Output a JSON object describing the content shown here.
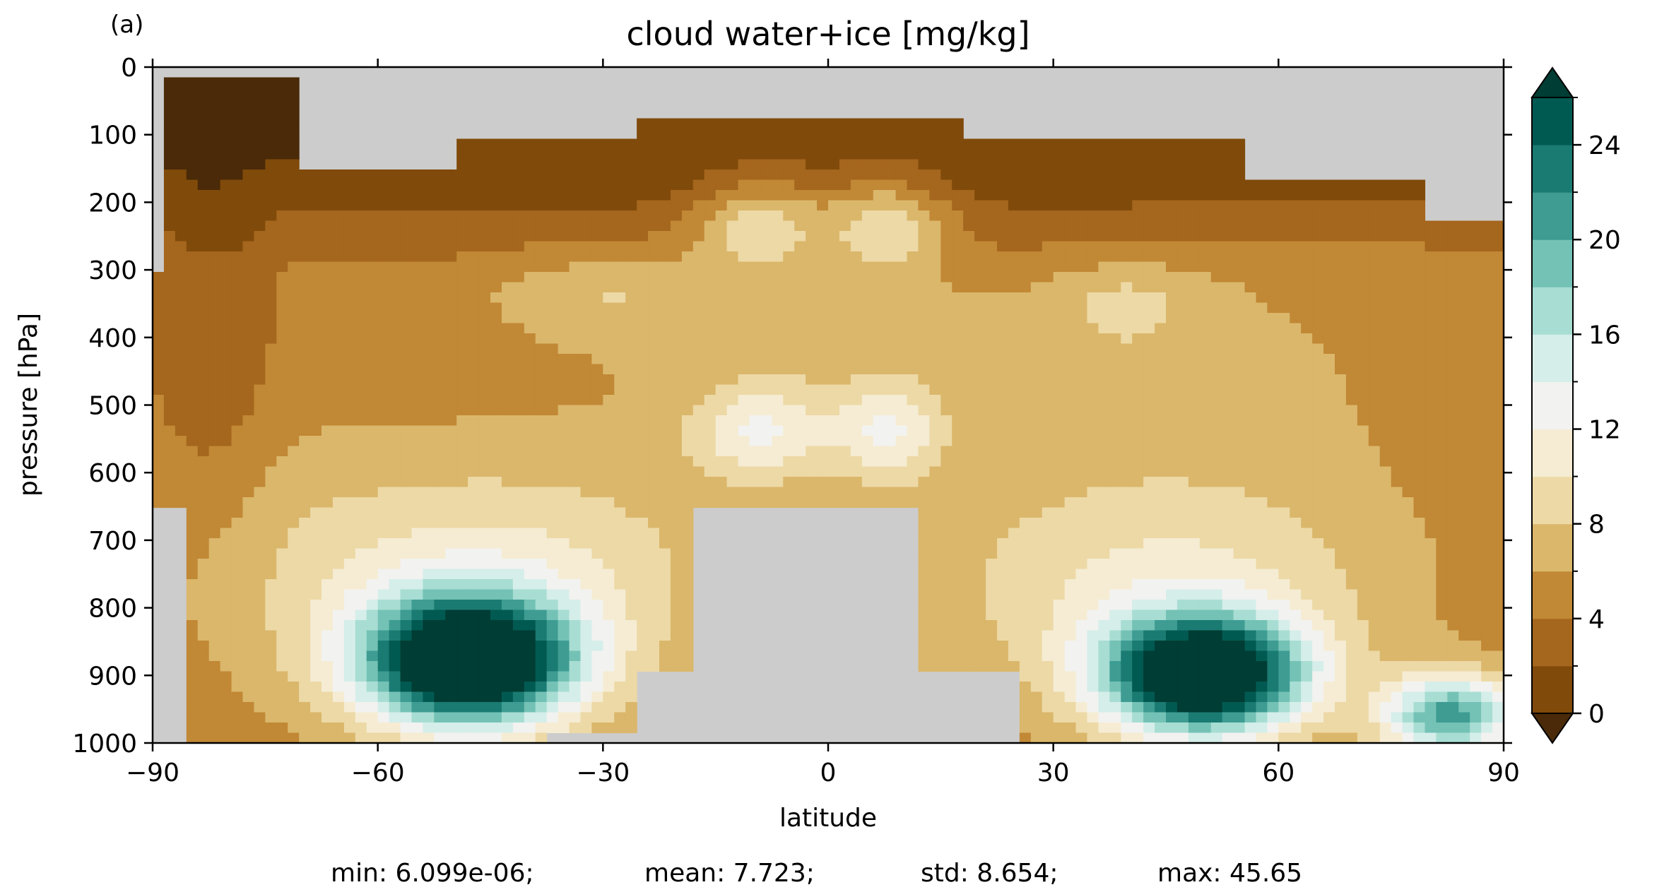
{
  "panel_label": "(a)",
  "chart_data": {
    "type": "heatmap",
    "subtype": "filled contour (latitude-pressure cross section)",
    "title": "cloud water+ice [mg/kg]",
    "xlabel": "latitude",
    "ylabel": "pressure [hPa]",
    "xlim": [
      -90,
      90
    ],
    "ylim": [
      1000,
      0
    ],
    "x_ticks": [
      -90,
      -60,
      -30,
      0,
      30,
      60,
      90
    ],
    "x_tick_labels": [
      "−90",
      "−60",
      "−30",
      "0",
      "30",
      "60",
      "90"
    ],
    "y_ticks": [
      0,
      100,
      200,
      300,
      400,
      500,
      600,
      700,
      800,
      900,
      1000
    ],
    "y_tick_labels": [
      "0",
      "100",
      "200",
      "300",
      "400",
      "500",
      "600",
      "700",
      "800",
      "900",
      "1000"
    ],
    "colorbar": {
      "levels": [
        0,
        2,
        4,
        6,
        8,
        10,
        12,
        14,
        16,
        18,
        20,
        22,
        24,
        26
      ],
      "tick_values": [
        0,
        4,
        8,
        12,
        16,
        20,
        24
      ],
      "tick_labels": [
        "0",
        "4",
        "8",
        "12",
        "16",
        "20",
        "24"
      ],
      "extend": "both",
      "colors": [
        "#4a2a08",
        "#804a0a",
        "#a5661d",
        "#c18835",
        "#dab76b",
        "#edd9a6",
        "#f5ecd3",
        "#f2f2f0",
        "#d5eeea",
        "#a8ddd3",
        "#74c2b5",
        "#3e9c93",
        "#1a7b72",
        "#015a52",
        "#003d34"
      ],
      "missing_color": "#cccccc"
    },
    "regions_note": "Peaks of ~26+ mg/kg near 850-950 hPa around 50S and 50N; upper tropospheric maxima ~10 mg/kg near 10S/10N at 250 and 550 hPa; grey = missing (above 100 hPa and below topography)",
    "stats": {
      "min": "min: 6.099e-06;",
      "mean": "mean: 7.723;",
      "std": "std: 8.654;",
      "max": "max: 45.65"
    }
  }
}
